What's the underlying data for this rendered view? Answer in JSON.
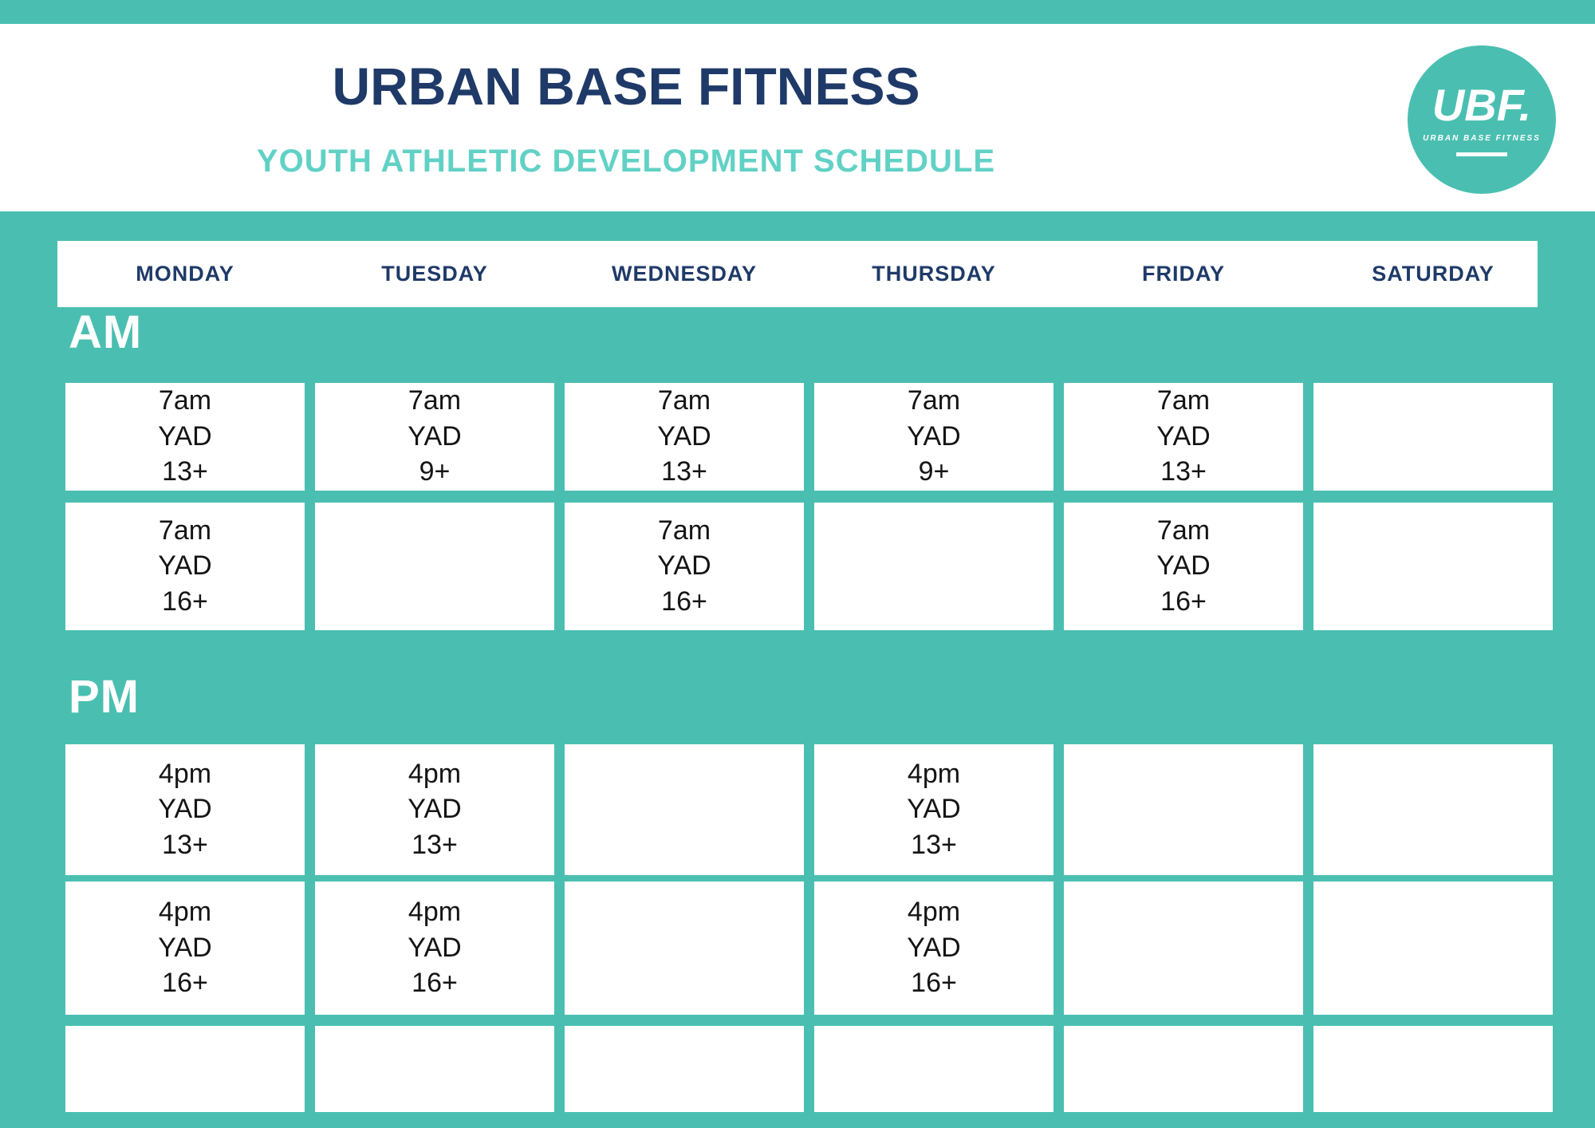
{
  "header": {
    "title": "URBAN BASE FITNESS",
    "subtitle": "YOUTH ATHLETIC DEVELOPMENT SCHEDULE"
  },
  "logo": {
    "acronym": "UBF.",
    "name": "URBAN BASE FITNESS"
  },
  "colors": {
    "teal": "#4abfb1",
    "light_teal": "#61d1c5",
    "navy": "#1f3a68",
    "cell_text": "#141414",
    "cell_bg": "#ffffff"
  },
  "days": [
    "MONDAY",
    "TUESDAY",
    "WEDNESDAY",
    "THURSDAY",
    "FRIDAY",
    "SATURDAY"
  ],
  "schedule": {
    "am": {
      "label": "AM",
      "rows": [
        [
          [
            "7am",
            "YAD",
            "13+"
          ],
          [
            "7am",
            "YAD",
            "9+"
          ],
          [
            "7am",
            "YAD",
            "13+"
          ],
          [
            "7am",
            "YAD",
            "9+"
          ],
          [
            "7am",
            "YAD",
            "13+"
          ],
          []
        ],
        [
          [
            "7am",
            "YAD",
            "16+"
          ],
          [],
          [
            "7am",
            "YAD",
            "16+"
          ],
          [],
          [
            "7am",
            "YAD",
            "16+"
          ],
          []
        ]
      ]
    },
    "pm": {
      "label": "PM",
      "rows": [
        [
          [
            "4pm",
            "YAD",
            "13+"
          ],
          [
            "4pm",
            "YAD",
            "13+"
          ],
          [],
          [
            "4pm",
            "YAD",
            "13+"
          ],
          [],
          []
        ],
        [
          [
            "4pm",
            "YAD",
            "16+"
          ],
          [
            "4pm",
            "YAD",
            "16+"
          ],
          [],
          [
            "4pm",
            "YAD",
            "16+"
          ],
          [],
          []
        ]
      ]
    },
    "extra_row": [
      [],
      [],
      [],
      [],
      [],
      []
    ]
  }
}
